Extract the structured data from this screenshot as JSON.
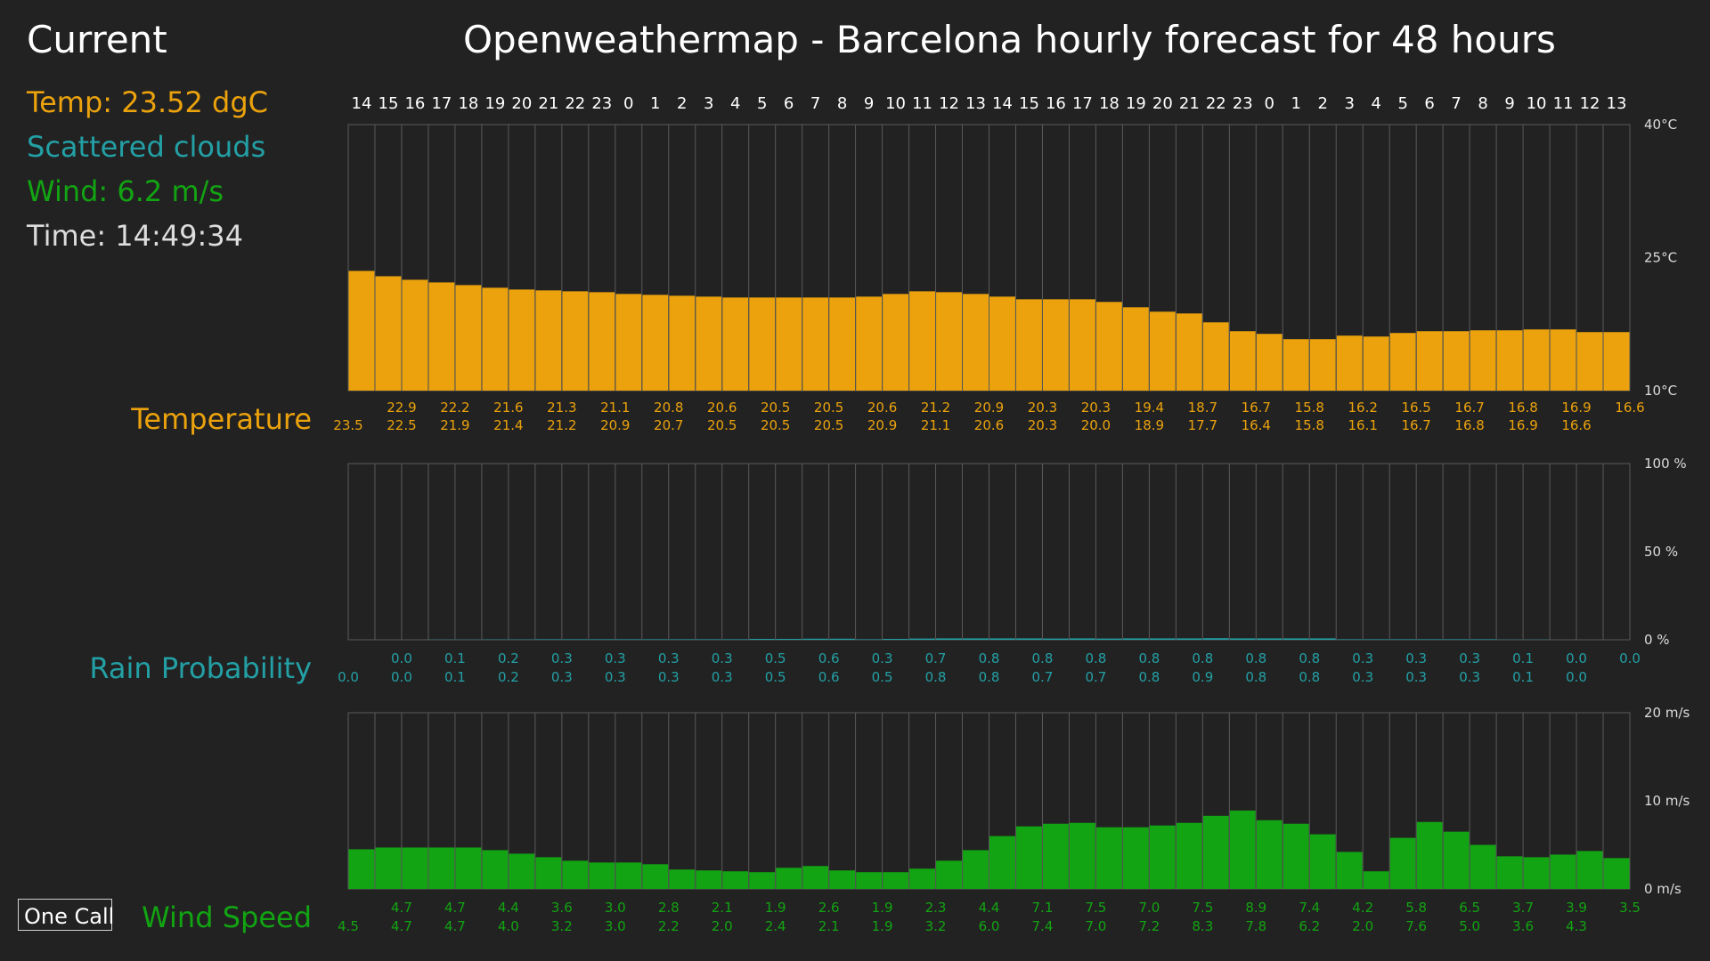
{
  "current": {
    "title": "Current",
    "temp": "Temp: 23.52 dgC",
    "description": "Scattered clouds",
    "wind": "Wind: 6.2 m/s",
    "time": "Time: 14:49:34"
  },
  "main_title": "Openweathermap  - Barcelona hourly forecast for 48 hours",
  "panel_labels": {
    "temperature": "Temperature",
    "rain": "Rain Probability",
    "wind": "Wind Speed"
  },
  "one_call_button": "One Call",
  "colors": {
    "temperature": "#eba20c",
    "rain": "#23a0a5",
    "wind": "#12a412",
    "time": "#dddddd",
    "grid": "#5a5a5a",
    "background": "#222222"
  },
  "chart_data": [
    {
      "type": "bar",
      "name": "temperature",
      "categories": [
        "14",
        "15",
        "16",
        "17",
        "18",
        "19",
        "20",
        "21",
        "22",
        "23",
        "0",
        "1",
        "2",
        "3",
        "4",
        "5",
        "6",
        "7",
        "8",
        "9",
        "10",
        "11",
        "12",
        "13",
        "14",
        "15",
        "16",
        "17",
        "18",
        "19",
        "20",
        "21",
        "22",
        "23",
        "0",
        "1",
        "2",
        "3",
        "4",
        "5",
        "6",
        "7",
        "8",
        "9",
        "10",
        "11",
        "12",
        "13"
      ],
      "values": [
        23.5,
        22.9,
        22.5,
        22.2,
        21.9,
        21.6,
        21.4,
        21.3,
        21.2,
        21.1,
        20.9,
        20.8,
        20.7,
        20.6,
        20.5,
        20.5,
        20.5,
        20.5,
        20.5,
        20.6,
        20.9,
        21.2,
        21.1,
        20.9,
        20.6,
        20.3,
        20.3,
        20.3,
        20.0,
        19.4,
        18.9,
        18.7,
        17.7,
        16.7,
        16.4,
        15.8,
        15.8,
        16.2,
        16.1,
        16.5,
        16.7,
        16.7,
        16.8,
        16.8,
        16.9,
        16.9,
        16.6,
        16.6
      ],
      "value_labels": [
        "23.5",
        "22.9",
        "22.5",
        "22.2",
        "21.9",
        "21.6",
        "21.4",
        "21.3",
        "21.2",
        "21.1",
        "20.9",
        "20.8",
        "20.7",
        "20.6",
        "20.5",
        "20.5",
        "20.5",
        "20.5",
        "20.5",
        "20.6",
        "20.9",
        "21.2",
        "21.1",
        "20.9",
        "20.6",
        "20.3",
        "20.3",
        "20.3",
        "20.0",
        "19.4",
        "18.9",
        "18.7",
        "17.7",
        "16.7",
        "16.4",
        "15.8",
        "15.8",
        "16.2",
        "16.1",
        "16.5",
        "16.7",
        "16.7",
        "16.8",
        "16.8",
        "16.9",
        "16.9",
        "16.6",
        "16.6"
      ],
      "ylim": [
        10,
        40
      ],
      "yticks": [
        {
          "value": 40,
          "label": "40°C"
        },
        {
          "value": 25,
          "label": "25°C"
        },
        {
          "value": 10,
          "label": "10°C"
        }
      ]
    },
    {
      "type": "bar",
      "name": "rain probability",
      "categories": [
        "14",
        "15",
        "16",
        "17",
        "18",
        "19",
        "20",
        "21",
        "22",
        "23",
        "0",
        "1",
        "2",
        "3",
        "4",
        "5",
        "6",
        "7",
        "8",
        "9",
        "10",
        "11",
        "12",
        "13",
        "14",
        "15",
        "16",
        "17",
        "18",
        "19",
        "20",
        "21",
        "22",
        "23",
        "0",
        "1",
        "2",
        "3",
        "4",
        "5",
        "6",
        "7",
        "8",
        "9",
        "10",
        "11",
        "12",
        "13"
      ],
      "values": [
        0.0,
        0.0,
        0.0,
        0.1,
        0.1,
        0.2,
        0.2,
        0.3,
        0.3,
        0.3,
        0.3,
        0.3,
        0.3,
        0.3,
        0.3,
        0.5,
        0.5,
        0.6,
        0.6,
        0.3,
        0.5,
        0.7,
        0.8,
        0.8,
        0.8,
        0.8,
        0.7,
        0.8,
        0.7,
        0.8,
        0.8,
        0.8,
        0.9,
        0.8,
        0.8,
        0.8,
        0.8,
        0.3,
        0.3,
        0.3,
        0.3,
        0.3,
        0.3,
        0.1,
        0.1,
        0.0,
        0.0,
        0.0
      ],
      "value_labels": [
        "0.0",
        "0.0",
        "0.0",
        "0.1",
        "0.1",
        "0.2",
        "0.2",
        "0.3",
        "0.3",
        "0.3",
        "0.3",
        "0.3",
        "0.3",
        "0.3",
        "0.3",
        "0.5",
        "0.5",
        "0.6",
        "0.6",
        "0.3",
        "0.5",
        "0.7",
        "0.8",
        "0.8",
        "0.8",
        "0.8",
        "0.7",
        "0.8",
        "0.7",
        "0.8",
        "0.8",
        "0.8",
        "0.9",
        "0.8",
        "0.8",
        "0.8",
        "0.8",
        "0.3",
        "0.3",
        "0.3",
        "0.3",
        "0.3",
        "0.3",
        "0.1",
        "0.1",
        "0.0",
        "0.0",
        "0.0"
      ],
      "ylim": [
        0,
        100
      ],
      "yticks": [
        {
          "value": 100,
          "label": "100 %"
        },
        {
          "value": 50,
          "label": "50 %"
        },
        {
          "value": 0,
          "label": "0 %"
        }
      ]
    },
    {
      "type": "bar",
      "name": "wind speed",
      "categories": [
        "14",
        "15",
        "16",
        "17",
        "18",
        "19",
        "20",
        "21",
        "22",
        "23",
        "0",
        "1",
        "2",
        "3",
        "4",
        "5",
        "6",
        "7",
        "8",
        "9",
        "10",
        "11",
        "12",
        "13",
        "14",
        "15",
        "16",
        "17",
        "18",
        "19",
        "20",
        "21",
        "22",
        "23",
        "0",
        "1",
        "2",
        "3",
        "4",
        "5",
        "6",
        "7",
        "8",
        "9",
        "10",
        "11",
        "12",
        "13"
      ],
      "values": [
        4.5,
        4.7,
        4.7,
        4.7,
        4.7,
        4.4,
        4.0,
        3.6,
        3.2,
        3.0,
        3.0,
        2.8,
        2.2,
        2.1,
        2.0,
        1.9,
        2.4,
        2.6,
        2.1,
        1.9,
        1.9,
        2.3,
        3.2,
        4.4,
        6.0,
        7.1,
        7.4,
        7.5,
        7.0,
        7.0,
        7.2,
        7.5,
        8.3,
        8.9,
        7.8,
        7.4,
        6.2,
        4.2,
        2.0,
        5.8,
        7.6,
        6.5,
        5.0,
        3.7,
        3.6,
        3.9,
        4.3,
        3.5
      ],
      "value_labels": [
        "4.5",
        "4.7",
        "4.7",
        "4.7",
        "4.7",
        "4.4",
        "4.0",
        "3.6",
        "3.2",
        "3.0",
        "3.0",
        "2.8",
        "2.2",
        "2.1",
        "2.0",
        "1.9",
        "2.4",
        "2.6",
        "2.1",
        "1.9",
        "1.9",
        "2.3",
        "3.2",
        "4.4",
        "6.0",
        "7.1",
        "7.4",
        "7.5",
        "7.0",
        "7.0",
        "7.2",
        "7.5",
        "8.3",
        "8.9",
        "7.8",
        "7.4",
        "6.2",
        "4.2",
        "2.0",
        "5.8",
        "7.6",
        "6.5",
        "5.0",
        "3.7",
        "3.6",
        "3.9",
        "4.3",
        "3.5"
      ],
      "ylim": [
        0,
        20
      ],
      "yticks": [
        {
          "value": 20,
          "label": "20 m/s"
        },
        {
          "value": 10,
          "label": "10 m/s"
        },
        {
          "value": 0,
          "label": "0 m/s"
        }
      ]
    }
  ]
}
